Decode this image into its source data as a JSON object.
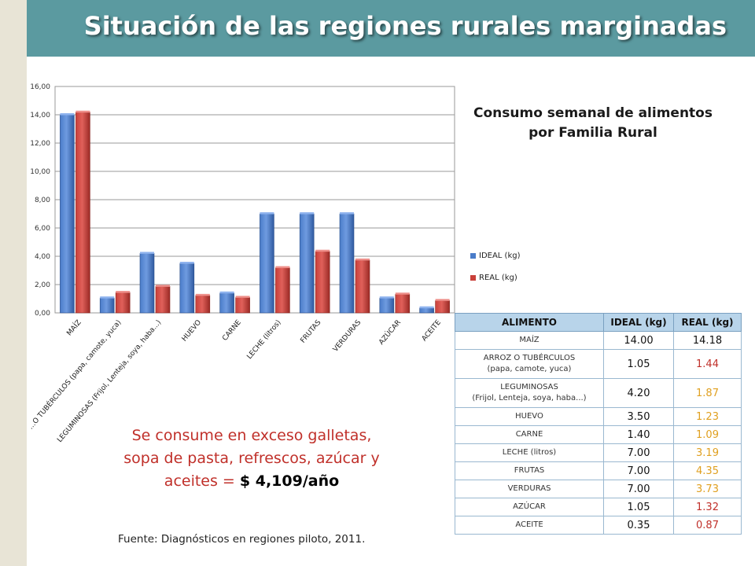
{
  "header": {
    "title": "Situación de las regiones rurales marginadas"
  },
  "chart_data": {
    "type": "bar",
    "title": "Consumo semanal de alimentos por Familia Rural",
    "title_lines": [
      "Consumo semanal de alimentos",
      "por Familia Rural"
    ],
    "categories": [
      "MAÍZ",
      "…O TUBÉRCULOS (papa, camote, yuca)",
      "LEGUMINOSAS (Frijol, Lenteja, soya, haba...)",
      "HUEVO",
      "CARNE",
      "LECHE (litros)",
      "FRUTAS",
      "VERDURAS",
      "AZÚCAR",
      "ACEITE"
    ],
    "series": [
      {
        "name": "IDEAL (kg)",
        "color": "#4a7cc9",
        "values": [
          14.0,
          1.05,
          4.2,
          3.5,
          1.4,
          7.0,
          7.0,
          7.0,
          1.05,
          0.35
        ]
      },
      {
        "name": "REAL (kg)",
        "color": "#c9403a",
        "values": [
          14.18,
          1.44,
          1.87,
          1.23,
          1.09,
          3.19,
          4.35,
          3.73,
          1.32,
          0.87
        ]
      }
    ],
    "yticks": [
      "0,00",
      "2,00",
      "4,00",
      "6,00",
      "8,00",
      "10,00",
      "12,00",
      "14,00",
      "16,00"
    ],
    "ylim": [
      0,
      16
    ],
    "grid": true,
    "legend_position": "right",
    "xlabel": "",
    "ylabel": ""
  },
  "table": {
    "headers": [
      "ALIMENTO",
      "IDEAL (kg)",
      "REAL (kg)"
    ],
    "rows": [
      {
        "name": "MAÍZ",
        "ideal": "14.00",
        "real": "14.18",
        "real_color": "#111111"
      },
      {
        "name": "ARROZ O TUBÉRCULOS\n(papa, camote, yuca)",
        "ideal": "1.05",
        "real": "1.44",
        "real_color": "#c0302a"
      },
      {
        "name": "LEGUMINOSAS\n(Frijol, Lenteja, soya, haba...)",
        "ideal": "4.20",
        "real": "1.87",
        "real_color": "#e0a020"
      },
      {
        "name": "HUEVO",
        "ideal": "3.50",
        "real": "1.23",
        "real_color": "#e0a020"
      },
      {
        "name": "CARNE",
        "ideal": "1.40",
        "real": "1.09",
        "real_color": "#e0a020"
      },
      {
        "name": "LECHE (litros)",
        "ideal": "7.00",
        "real": "3.19",
        "real_color": "#e0a020"
      },
      {
        "name": "FRUTAS",
        "ideal": "7.00",
        "real": "4.35",
        "real_color": "#e0a020"
      },
      {
        "name": "VERDURAS",
        "ideal": "7.00",
        "real": "3.73",
        "real_color": "#e0a020"
      },
      {
        "name": "AZÚCAR",
        "ideal": "1.05",
        "real": "1.32",
        "real_color": "#c0302a"
      },
      {
        "name": "ACEITE",
        "ideal": "0.35",
        "real": "0.87",
        "real_color": "#c0302a"
      }
    ]
  },
  "remark": {
    "line1": "Se consume en exceso galletas,",
    "line2": "sopa de pasta, refrescos, azúcar y",
    "line3_prefix": "aceites = ",
    "amount": "$ 4,109/año"
  },
  "source": "Fuente: Diagnósticos en regiones piloto, 2011.",
  "colors": {
    "title_bar": "#5b9aa0",
    "left_strip": "#e8e4d6",
    "table_header": "#b8d4ea"
  }
}
